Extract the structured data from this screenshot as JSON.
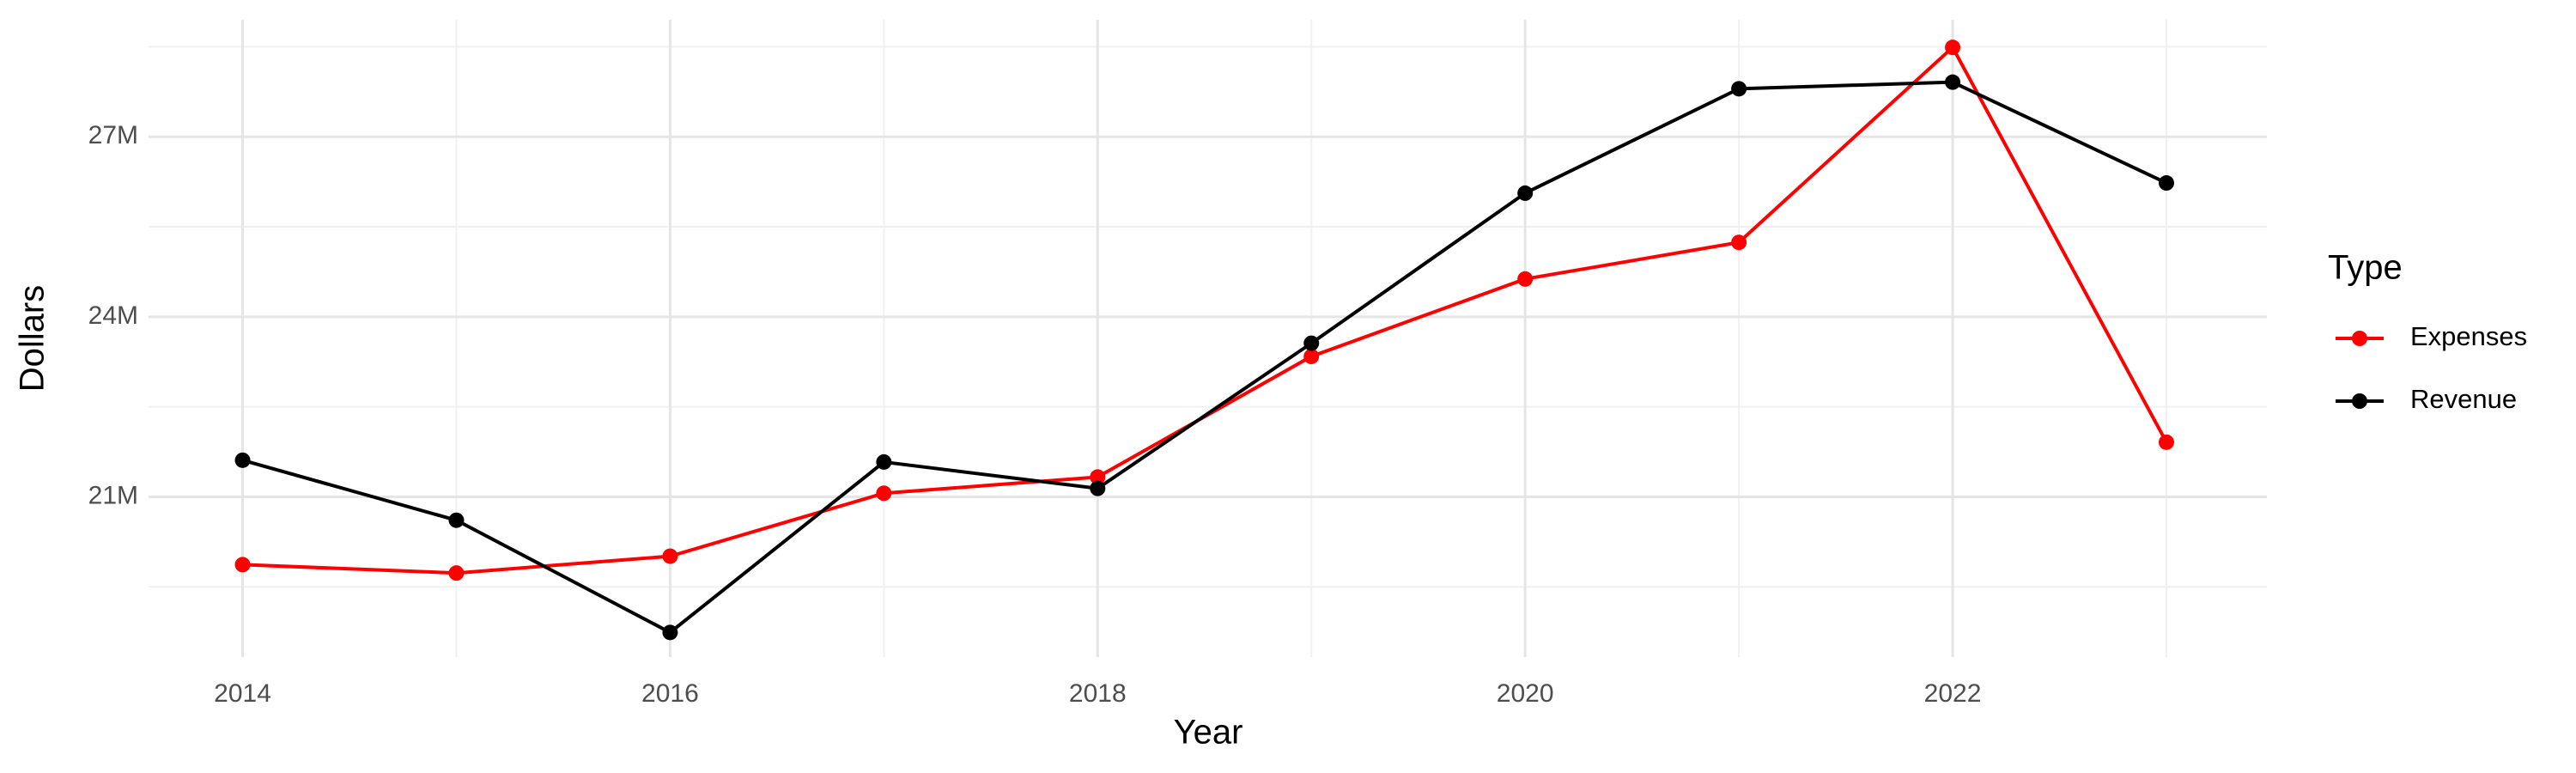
{
  "chart_data": {
    "type": "line",
    "x_label": "Year",
    "y_label": "Dollars",
    "legend_title": "Type",
    "x": [
      2014,
      2015,
      2016,
      2017,
      2018,
      2019,
      2020,
      2021,
      2022,
      2023
    ],
    "series": [
      {
        "name": "Expenses",
        "color": "#ff0000",
        "values": [
          19870000,
          19730000,
          20010000,
          21060000,
          21330000,
          23340000,
          24630000,
          25240000,
          28490000,
          21910000
        ]
      },
      {
        "name": "Revenue",
        "color": "#000000",
        "values": [
          21610000,
          20610000,
          18740000,
          21580000,
          21140000,
          23560000,
          26060000,
          27800000,
          27910000,
          26230000
        ]
      }
    ],
    "xlim": [
      2013.56,
      2023.47
    ],
    "xticks": [
      2014,
      2016,
      2018,
      2020,
      2022
    ],
    "minor_xticks": [
      2015,
      2017,
      2019,
      2021,
      2023
    ],
    "ylim": [
      18330000,
      28950000
    ],
    "yticks": [
      {
        "value": 21000000,
        "label": "21M"
      },
      {
        "value": 24000000,
        "label": "24M"
      },
      {
        "value": 27000000,
        "label": "27M"
      }
    ],
    "minor_yticks": [
      19500000,
      22500000,
      25500000,
      28500000
    ],
    "grid": true,
    "legend_position": "right"
  }
}
